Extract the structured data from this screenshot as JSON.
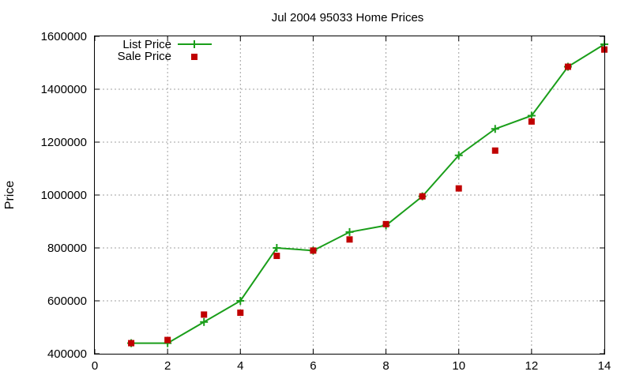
{
  "chart_data": {
    "type": "line",
    "title": "Jul 2004 95033 Home Prices",
    "xlabel": "",
    "ylabel": "Price",
    "xlim": [
      0,
      14
    ],
    "ylim": [
      400000,
      1600000
    ],
    "x_ticks": [
      "0",
      "2",
      "4",
      "6",
      "8",
      "10",
      "12",
      "14"
    ],
    "y_ticks": [
      "400000",
      "600000",
      "800000",
      "1000000",
      "1200000",
      "1400000",
      "1600000"
    ],
    "grid": true,
    "legend_position": "top-left",
    "series": [
      {
        "name": "List Price",
        "style": "line with plus markers",
        "color": "#1a9e1a",
        "x": [
          1,
          2,
          3,
          4,
          5,
          6,
          7,
          8,
          9,
          10,
          11,
          12,
          13,
          14
        ],
        "y": [
          440000,
          440000,
          520000,
          600000,
          800000,
          790000,
          860000,
          885000,
          995000,
          1150000,
          1250000,
          1300000,
          1485000,
          1570000
        ]
      },
      {
        "name": "Sale Price",
        "style": "square markers",
        "color": "#c00000",
        "x": [
          1,
          2,
          3,
          4,
          5,
          6,
          7,
          8,
          9,
          10,
          11,
          12,
          13,
          14
        ],
        "y": [
          440000,
          452000,
          548000,
          555000,
          770000,
          790000,
          832000,
          890000,
          995000,
          1025000,
          1168000,
          1278000,
          1485000,
          1550000
        ]
      }
    ]
  }
}
